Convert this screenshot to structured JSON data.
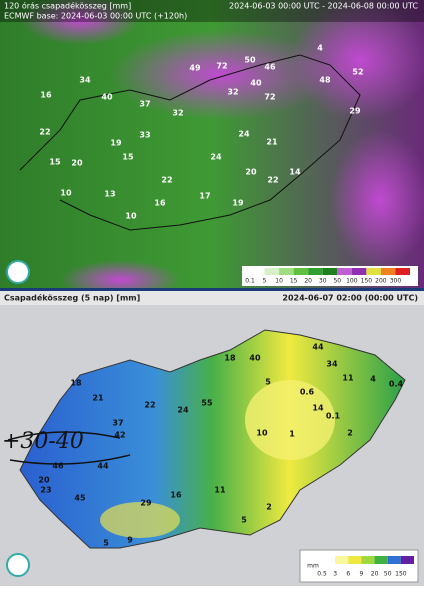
{
  "top_panel": {
    "title_left": "120 órás csapadékösszeg [mm]",
    "subtitle_left": "ECMWF base: 2024-06-03 00:00 UTC (+120h)",
    "title_right": "2024-06-03 00:00 UTC - 2024-06-08 00:00 UTC",
    "values": [
      34,
      16,
      40,
      37,
      22,
      32,
      19,
      33,
      15,
      20,
      15,
      22,
      24,
      21,
      24,
      20,
      22,
      14,
      10,
      13,
      16,
      17,
      19,
      10,
      49,
      72,
      50,
      46,
      4,
      48,
      52,
      40,
      32,
      72,
      29
    ],
    "legend_labels": [
      0.1,
      5,
      10,
      15,
      20,
      30,
      50,
      100,
      150,
      200,
      300
    ]
  },
  "bottom_panel": {
    "title": "Csapadékösszeg (5 nap) [mm]",
    "timestamp": "2024-06-07 02:00 (00:00 UTC)",
    "values": [
      40,
      18,
      44,
      34,
      18,
      21,
      22,
      24,
      55,
      5,
      11,
      4,
      0.4,
      0.6,
      14,
      0.1,
      1,
      10,
      2,
      42,
      37,
      44,
      46,
      45,
      29,
      16,
      11,
      2,
      5,
      9,
      5,
      20,
      23
    ],
    "legend_unit": "mm",
    "legend_labels": [
      0.5,
      3,
      6,
      9,
      20,
      50,
      150
    ]
  },
  "annotation": "+30-40"
}
